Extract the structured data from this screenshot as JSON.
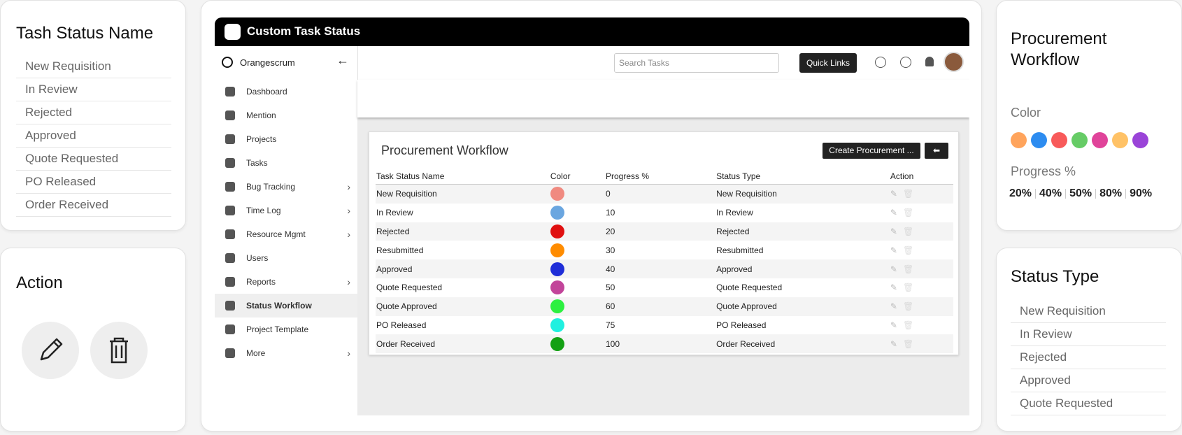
{
  "status_name_card": {
    "title": "Tash Status Name",
    "items": [
      "New Requisition",
      "In Review",
      "Rejected",
      "Approved",
      "Quote Requested",
      "PO Released",
      "Order Received"
    ]
  },
  "action_card": {
    "title": "Action"
  },
  "app": {
    "header_title": "Custom Task Status",
    "brand": "Orangescrum",
    "search_placeholder": "Search Tasks",
    "quick_links": "Quick Links",
    "nav": [
      {
        "label": "Dashboard",
        "submenu": false
      },
      {
        "label": "Mention",
        "submenu": false
      },
      {
        "label": "Projects",
        "submenu": false
      },
      {
        "label": "Tasks",
        "submenu": false
      },
      {
        "label": "Bug Tracking",
        "submenu": true
      },
      {
        "label": "Time Log",
        "submenu": true
      },
      {
        "label": "Resource Mgmt",
        "submenu": true
      },
      {
        "label": "Users",
        "submenu": false
      },
      {
        "label": "Reports",
        "submenu": true
      },
      {
        "label": "Status Workflow",
        "submenu": false,
        "active": true
      },
      {
        "label": "Project Template",
        "submenu": false
      },
      {
        "label": "More",
        "submenu": true
      }
    ],
    "panel": {
      "title": "Procurement Workflow",
      "create_button": "Create Procurement ...",
      "columns": [
        "Task Status Name",
        "Color",
        "Progress %",
        "Status Type",
        "Action"
      ],
      "rows": [
        {
          "name": "New Requisition",
          "color": "#f08a80",
          "progress": 0,
          "status_type": "New Requisition"
        },
        {
          "name": "In Review",
          "color": "#6aa6e0",
          "progress": 10,
          "status_type": "In Review"
        },
        {
          "name": "Rejected",
          "color": "#e01010",
          "progress": 20,
          "status_type": "Rejected"
        },
        {
          "name": "Resubmitted",
          "color": "#ff8c00",
          "progress": 30,
          "status_type": "Resubmitted"
        },
        {
          "name": "Approved",
          "color": "#1f2ed8",
          "progress": 40,
          "status_type": "Approved"
        },
        {
          "name": "Quote Requested",
          "color": "#c2449a",
          "progress": 50,
          "status_type": "Quote Requested"
        },
        {
          "name": "Quote Approved",
          "color": "#2cf040",
          "progress": 60,
          "status_type": "Quote Approved"
        },
        {
          "name": "PO Released",
          "color": "#20f0e0",
          "progress": 75,
          "status_type": "PO Released"
        },
        {
          "name": "Order Received",
          "color": "#14a014",
          "progress": 100,
          "status_type": "Order Received"
        }
      ]
    }
  },
  "workflow_card": {
    "title": "Procurement Workflow",
    "color_label": "Color",
    "colors": [
      "#ffa45c",
      "#2d8cf0",
      "#f85a5a",
      "#66cc66",
      "#e0449a",
      "#ffc266",
      "#9a44d8"
    ],
    "progress_label": "Progress %",
    "progress_values": [
      "20%",
      "40%",
      "50%",
      "80%",
      "90%"
    ]
  },
  "status_type_card": {
    "title": "Status Type",
    "items": [
      "New Requisition",
      "In Review",
      "Rejected",
      "Approved",
      "Quote Requested"
    ]
  }
}
